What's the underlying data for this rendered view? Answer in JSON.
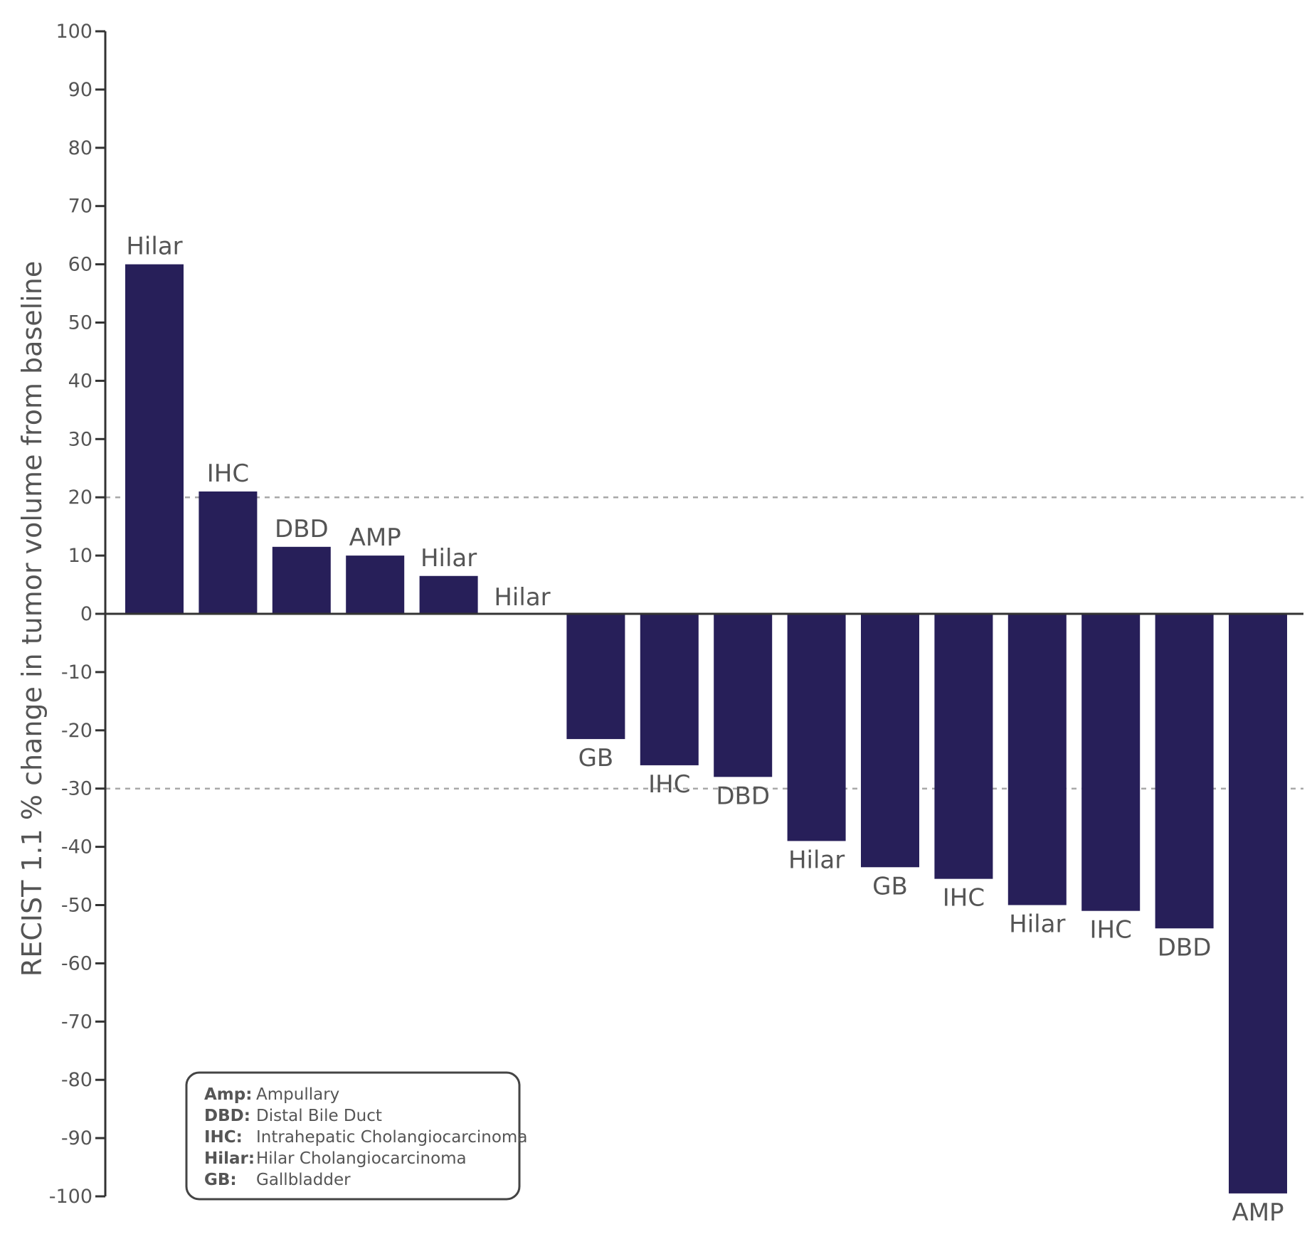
{
  "chart_data": {
    "type": "bar",
    "ylabel": "RECIST 1.1 % change in tumor volume from baseline",
    "ylim": [
      -100,
      100
    ],
    "yticks": [
      100,
      90,
      80,
      70,
      60,
      50,
      40,
      30,
      20,
      10,
      0,
      -10,
      -20,
      -30,
      -40,
      -50,
      -60,
      -70,
      -80,
      -90,
      -100
    ],
    "reference_lines": [
      20,
      -30
    ],
    "categories": [
      "Hilar",
      "IHC",
      "DBD",
      "AMP",
      "Hilar",
      "Hilar",
      "GB",
      "IHC",
      "DBD",
      "Hilar",
      "GB",
      "IHC",
      "Hilar",
      "IHC",
      "DBD",
      "AMP"
    ],
    "values": [
      60,
      21,
      11.5,
      10,
      6.5,
      0,
      -21.5,
      -26,
      -28,
      -39,
      -43.5,
      -45.5,
      -50,
      -51,
      -54,
      -99.5
    ],
    "bar_color": "#271f59",
    "legend": [
      {
        "key": "Amp:",
        "value": "Ampullary"
      },
      {
        "key": "DBD:",
        "value": "Distal Bile Duct"
      },
      {
        "key": "IHC:",
        "value": "Intrahepatic Cholangiocarcinoma"
      },
      {
        "key": "Hilar:",
        "value": "Hilar Cholangiocarcinoma"
      },
      {
        "key": "GB:",
        "value": "Gallbladder"
      }
    ]
  }
}
